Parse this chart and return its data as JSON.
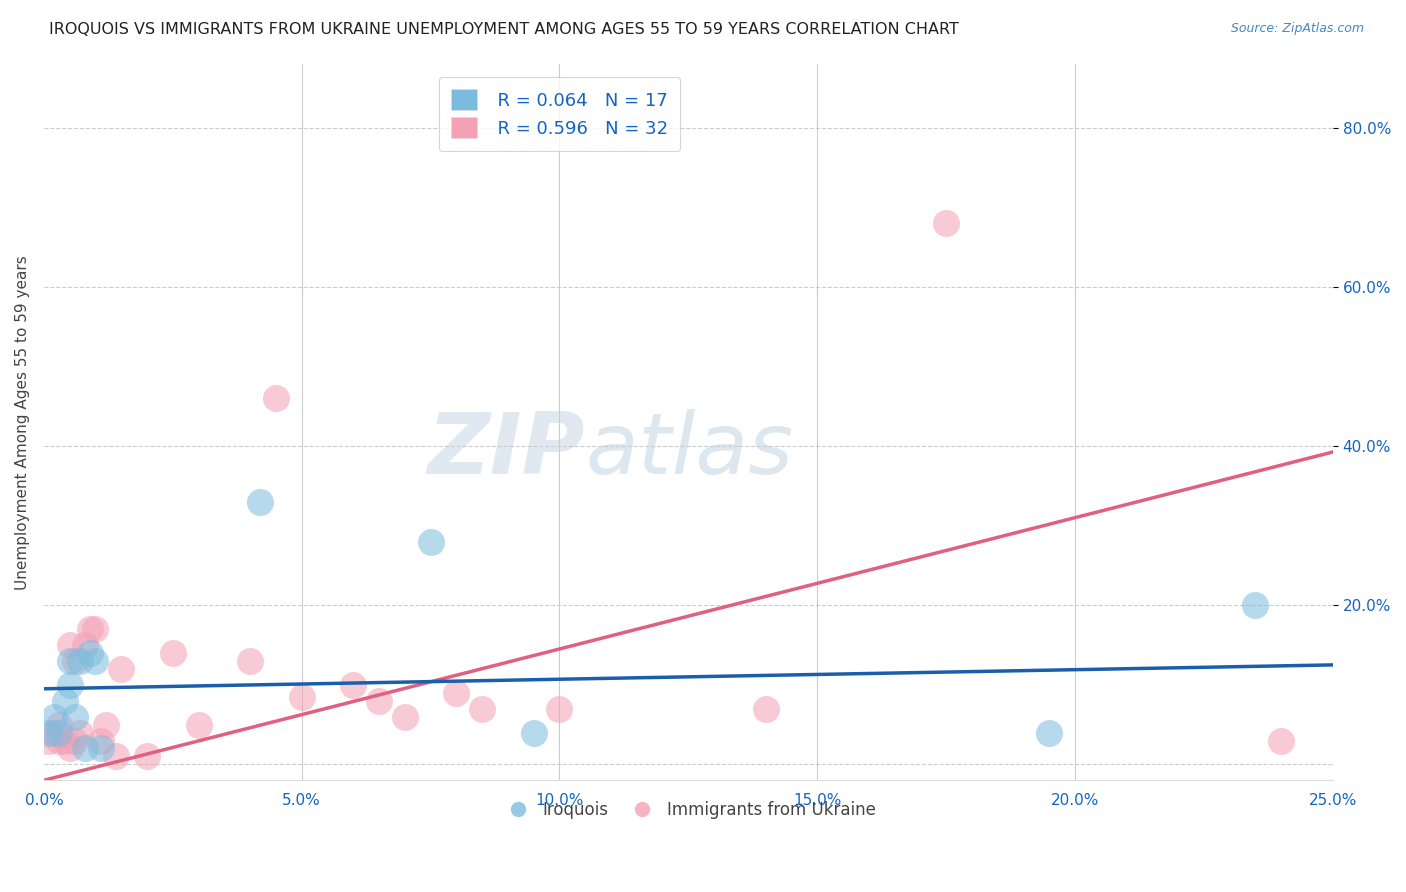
{
  "title": "IROQUOIS VS IMMIGRANTS FROM UKRAINE UNEMPLOYMENT AMONG AGES 55 TO 59 YEARS CORRELATION CHART",
  "source": "Source: ZipAtlas.com",
  "ylabel": "Unemployment Among Ages 55 to 59 years",
  "xlim": [
    0.0,
    0.25
  ],
  "ylim": [
    -0.02,
    0.88
  ],
  "xticks": [
    0.0,
    0.05,
    0.1,
    0.15,
    0.2,
    0.25
  ],
  "yticks": [
    0.0,
    0.2,
    0.4,
    0.6,
    0.8
  ],
  "watermark_zip": "ZIP",
  "watermark_atlas": "atlas",
  "legend_r1": "R = 0.064",
  "legend_n1": "N = 17",
  "legend_r2": "R = 0.596",
  "legend_n2": "N = 32",
  "blue_color": "#7BBCDE",
  "pink_color": "#F4A0B5",
  "trendline_blue": "#1A5FAB",
  "trendline_pink": "#E06080",
  "trendline_blue_slope": 0.12,
  "trendline_blue_intercept": 0.095,
  "trendline_pink_slope": 1.65,
  "trendline_pink_intercept": -0.02,
  "iroquois_x": [
    0.001,
    0.002,
    0.003,
    0.004,
    0.005,
    0.005,
    0.006,
    0.007,
    0.008,
    0.009,
    0.01,
    0.011,
    0.042,
    0.075,
    0.095,
    0.195,
    0.235
  ],
  "iroquois_y": [
    0.04,
    0.06,
    0.04,
    0.08,
    0.1,
    0.13,
    0.06,
    0.13,
    0.02,
    0.14,
    0.13,
    0.02,
    0.33,
    0.28,
    0.04,
    0.04,
    0.2
  ],
  "ukraine_x": [
    0.001,
    0.002,
    0.003,
    0.003,
    0.004,
    0.005,
    0.005,
    0.006,
    0.006,
    0.007,
    0.008,
    0.009,
    0.01,
    0.011,
    0.012,
    0.014,
    0.015,
    0.02,
    0.025,
    0.03,
    0.04,
    0.045,
    0.05,
    0.06,
    0.065,
    0.07,
    0.08,
    0.085,
    0.1,
    0.14,
    0.175,
    0.24
  ],
  "ukraine_y": [
    0.03,
    0.04,
    0.03,
    0.05,
    0.03,
    0.02,
    0.15,
    0.03,
    0.13,
    0.04,
    0.15,
    0.17,
    0.17,
    0.03,
    0.05,
    0.01,
    0.12,
    0.01,
    0.14,
    0.05,
    0.13,
    0.46,
    0.085,
    0.1,
    0.08,
    0.06,
    0.09,
    0.07,
    0.07,
    0.07,
    0.68,
    0.03
  ],
  "dot_size": 380
}
